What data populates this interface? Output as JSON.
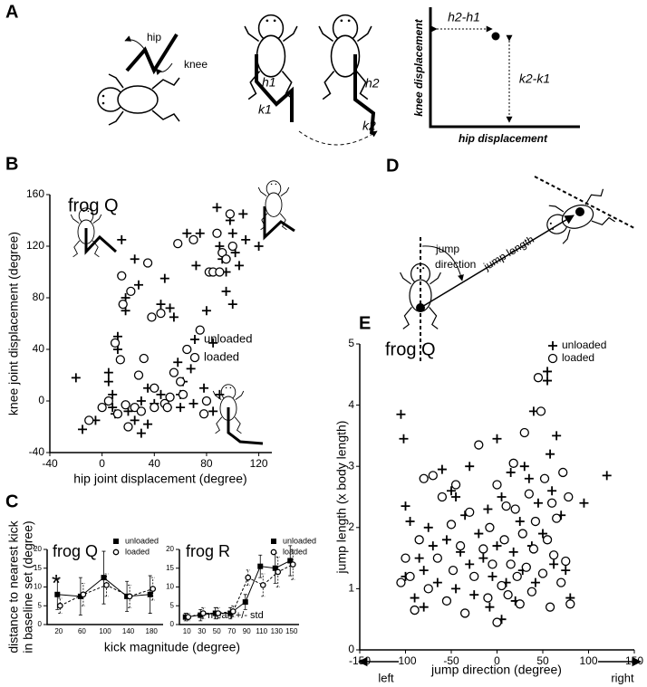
{
  "figure": {
    "panel_labels": [
      "A",
      "B",
      "C",
      "D",
      "E"
    ],
    "panel_a": {
      "labels": [
        "hip",
        "knee",
        "h1",
        "k1",
        "h2",
        "k2",
        "h2-h1",
        "k2-k1"
      ],
      "y_axis_label": "knee displacement",
      "x_axis_label": "hip displacement"
    },
    "panel_d": {
      "labels": [
        "jump",
        "direction",
        "jump length"
      ]
    }
  },
  "chart_data": [
    {
      "type": "scatter",
      "title": "frog Q",
      "xlabel": "hip joint displacement (degree)",
      "ylabel": "knee joint displacement (degree)",
      "xlim": [
        -40,
        130
      ],
      "xticks": [
        -40,
        0,
        40,
        80,
        120
      ],
      "ylim": [
        -40,
        160
      ],
      "yticks": [
        -40,
        0,
        40,
        80,
        120,
        160
      ],
      "series": [
        {
          "name": "unloaded",
          "marker": "plus",
          "color": "#000000",
          "x": [
            -20,
            -15,
            -5,
            5,
            5,
            8,
            8,
            10,
            12,
            12,
            15,
            18,
            18,
            20,
            25,
            25,
            28,
            30,
            30,
            35,
            35,
            40,
            45,
            45,
            48,
            50,
            52,
            55,
            58,
            60,
            60,
            62,
            65,
            68,
            70,
            72,
            75,
            78,
            80,
            85,
            88,
            90,
            92,
            95,
            95,
            98,
            100,
            102,
            105,
            108,
            110,
            120,
            100,
            85,
            90
          ],
          "values": [
            18,
            -22,
            -15,
            22,
            15,
            5,
            -5,
            -10,
            50,
            40,
            125,
            80,
            70,
            -8,
            110,
            -15,
            90,
            0,
            -25,
            -18,
            10,
            -2,
            5,
            75,
            95,
            -5,
            72,
            65,
            30,
            -5,
            5,
            15,
            130,
            25,
            -2,
            105,
            130,
            10,
            70,
            -8,
            150,
            120,
            110,
            100,
            85,
            140,
            130,
            115,
            105,
            145,
            125,
            120,
            75,
            45,
            5
          ]
        },
        {
          "name": "loaded",
          "marker": "circle",
          "color": "#000000",
          "x": [
            -10,
            0,
            5,
            10,
            12,
            14,
            15,
            16,
            18,
            20,
            22,
            25,
            28,
            30,
            32,
            35,
            38,
            40,
            40,
            45,
            48,
            50,
            52,
            55,
            58,
            60,
            62,
            65,
            70,
            75,
            78,
            80,
            82,
            85,
            88,
            90,
            92,
            95,
            98,
            100
          ],
          "values": [
            -15,
            -5,
            0,
            45,
            -10,
            32,
            97,
            75,
            -3,
            -20,
            85,
            -5,
            20,
            -8,
            33,
            107,
            65,
            10,
            -5,
            68,
            -2,
            -5,
            3,
            22,
            122,
            15,
            5,
            40,
            125,
            55,
            -10,
            0,
            100,
            100,
            130,
            100,
            115,
            110,
            145,
            120
          ]
        }
      ]
    },
    {
      "type": "line",
      "title": "frog Q",
      "xlabel": "kick magnitude (degree)",
      "ylabel": [
        "distance to nearest kick",
        "in baseline set (degree)"
      ],
      "annotations": [
        "*"
      ],
      "categories": [
        "20",
        "60",
        "100",
        "140",
        "180"
      ],
      "ylim": [
        0,
        20
      ],
      "yticks": [
        0,
        5,
        10,
        15,
        20
      ],
      "series": [
        {
          "name": "unloaded",
          "marker": "square",
          "line_style": "solid",
          "color": "#000000",
          "values": [
            8,
            7.5,
            12.5,
            7.5,
            8
          ],
          "errors": [
            4,
            5,
            7,
            4,
            5
          ]
        },
        {
          "name": "loaded",
          "marker": "circle",
          "line_style": "dashed",
          "color": "#000000",
          "values": [
            5,
            8,
            10.5,
            7.5,
            9.5
          ],
          "errors": [
            2,
            3,
            3,
            3,
            3
          ]
        }
      ]
    },
    {
      "type": "line",
      "title": "frog R",
      "annotations": [
        "mean +/- std"
      ],
      "categories": [
        "10",
        "30",
        "50",
        "70",
        "90",
        "110",
        "130",
        "150"
      ],
      "ylim": [
        0,
        20
      ],
      "yticks": [
        0,
        5,
        10,
        15,
        20
      ],
      "series": [
        {
          "name": "unloaded",
          "marker": "square",
          "line_style": "solid",
          "color": "#000000",
          "values": [
            2,
            2.5,
            3,
            3,
            6,
            15.5,
            15,
            17
          ],
          "errors": [
            1,
            1.5,
            1.5,
            1.5,
            2,
            3,
            4,
            4
          ]
        },
        {
          "name": "loaded",
          "marker": "circle",
          "line_style": "dashed",
          "color": "#000000",
          "values": [
            2,
            3,
            3,
            3.5,
            12.5,
            10.5,
            14,
            16
          ],
          "errors": [
            1,
            1.5,
            1.5,
            1.5,
            2,
            3,
            4,
            4
          ]
        }
      ]
    },
    {
      "type": "scatter",
      "title": "frog Q",
      "xlabel": "jump direction (degree)",
      "ylabel": "jump length (x body length)",
      "annotations": [
        "left",
        "right"
      ],
      "xlim": [
        -150,
        150
      ],
      "xticks": [
        -150,
        -100,
        -50,
        0,
        50,
        100,
        150
      ],
      "ylim": [
        0,
        5
      ],
      "yticks": [
        0,
        1,
        2,
        3,
        4,
        5
      ],
      "series": [
        {
          "name": "unloaded",
          "marker": "plus",
          "color": "#000000",
          "x": [
            -105,
            -102,
            -100,
            -100,
            -95,
            -90,
            -85,
            -80,
            -80,
            -75,
            -70,
            -65,
            -60,
            -55,
            -50,
            -45,
            -45,
            -40,
            -35,
            -30,
            -30,
            -25,
            -20,
            -15,
            -10,
            -8,
            -5,
            0,
            0,
            5,
            5,
            10,
            15,
            18,
            20,
            25,
            28,
            30,
            35,
            38,
            40,
            42,
            45,
            50,
            55,
            55,
            58,
            60,
            62,
            65,
            70,
            75,
            80,
            95,
            120
          ],
          "values": [
            3.85,
            3.45,
            2.35,
            1.2,
            2.1,
            0.85,
            1.5,
            1.3,
            0.7,
            2.0,
            1.7,
            1.1,
            2.95,
            1.8,
            2.6,
            2.5,
            1.0,
            1.6,
            2.2,
            3.0,
            1.4,
            0.9,
            1.9,
            1.5,
            2.3,
            0.7,
            1.2,
            3.45,
            1.7,
            2.5,
            0.5,
            1.1,
            2.9,
            1.6,
            0.8,
            2.1,
            1.3,
            3.0,
            2.8,
            1.7,
            3.9,
            1.1,
            2.4,
            1.9,
            4.55,
            4.4,
            3.2,
            2.6,
            1.4,
            3.5,
            2.2,
            1.3,
            0.85,
            2.4,
            2.85
          ]
        },
        {
          "name": "loaded",
          "marker": "circle",
          "color": "#000000",
          "x": [
            -95,
            -90,
            -85,
            -80,
            -75,
            -70,
            -65,
            -60,
            -55,
            -50,
            -48,
            -45,
            -40,
            -35,
            -30,
            -25,
            -20,
            -15,
            -10,
            -8,
            -5,
            0,
            0,
            5,
            8,
            10,
            12,
            15,
            18,
            20,
            22,
            25,
            28,
            30,
            32,
            35,
            38,
            40,
            42,
            45,
            48,
            50,
            52,
            55,
            58,
            60,
            62,
            65,
            70,
            72,
            75,
            78,
            80,
            -100,
            -105
          ],
          "values": [
            1.2,
            0.65,
            1.8,
            2.8,
            1.0,
            2.85,
            1.5,
            2.5,
            0.8,
            2.05,
            1.3,
            2.7,
            1.7,
            0.6,
            2.25,
            1.2,
            3.35,
            1.65,
            0.85,
            2.0,
            1.4,
            2.7,
            0.45,
            1.05,
            1.8,
            2.35,
            0.9,
            1.4,
            3.05,
            2.3,
            1.2,
            0.75,
            1.9,
            3.55,
            1.35,
            2.55,
            0.95,
            1.65,
            2.1,
            4.45,
            3.9,
            1.25,
            2.8,
            1.8,
            0.7,
            2.4,
            1.55,
            2.15,
            1.1,
            2.9,
            1.45,
            2.5,
            0.75,
            1.5,
            1.1
          ]
        }
      ]
    }
  ]
}
